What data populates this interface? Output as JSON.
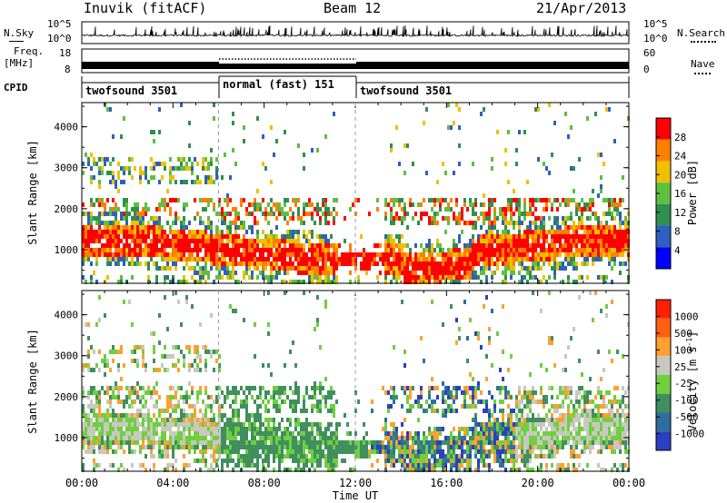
{
  "header": {
    "station": "Inuvik (fitACF)",
    "beam": "Beam 12",
    "date": "21/Apr/2013"
  },
  "top_panels": {
    "nsky_label": "N.Sky",
    "nsky_ticks": [
      "10^5",
      "10^0"
    ],
    "nsearch_label": "N.Search",
    "nsearch_ticks": [
      "10^5",
      "10^0"
    ],
    "freq_label_line1": "Freq.",
    "freq_label_line2": "[MHz]",
    "freq_ticks": [
      "18",
      "8"
    ],
    "nave_label": "Nave",
    "nave_ticks": [
      "60",
      "0"
    ],
    "cpid_label": "CPID",
    "cpid_segments": [
      {
        "label": "twofsound 3501",
        "start_hour": 0,
        "end_hour": 6
      },
      {
        "label": "normal (fast) 151",
        "start_hour": 6,
        "end_hour": 12
      },
      {
        "label": "twofsound 3501",
        "start_hour": 12,
        "end_hour": 24
      }
    ]
  },
  "chart_data": [
    {
      "type": "heatmap",
      "name": "power",
      "ylabel": "Slant Range [km]",
      "y_ticks": [
        "4000",
        "3000",
        "2000",
        "1000"
      ],
      "ylim": [
        180,
        4590
      ],
      "colorbar_label": "Power [dB]",
      "colorbar_ticks": [
        "28",
        "24",
        "20",
        "16",
        "12",
        "8",
        "4"
      ],
      "colors": [
        "#0000ff",
        "#2f5fbf",
        "#2f8f4f",
        "#5fbf3f",
        "#f0c000",
        "#ff7f00",
        "#ff0000"
      ]
    },
    {
      "type": "heatmap",
      "name": "velocity",
      "ylabel": "Slant Range [km]",
      "y_ticks": [
        "4000",
        "3000",
        "2000",
        "1000"
      ],
      "ylim": [
        180,
        4590
      ],
      "xlabel": "Time UT",
      "x_ticks": [
        "00:00",
        "04:00",
        "08:00",
        "12:00",
        "16:00",
        "20:00",
        "00:00"
      ],
      "colorbar_label": "Velocity [m s",
      "colorbar_label_sup": "-1",
      "colorbar_label_end": "]",
      "colorbar_ticks": [
        "1000",
        "500",
        "100",
        "25",
        "-25",
        "-100",
        "-500",
        "-1000"
      ],
      "colors": [
        "#2b3fbf",
        "#2f6fa0",
        "#3f8f5f",
        "#6fcf3f",
        "#c8c8c0",
        "#ffa030",
        "#ff6010",
        "#ff2000"
      ]
    }
  ]
}
